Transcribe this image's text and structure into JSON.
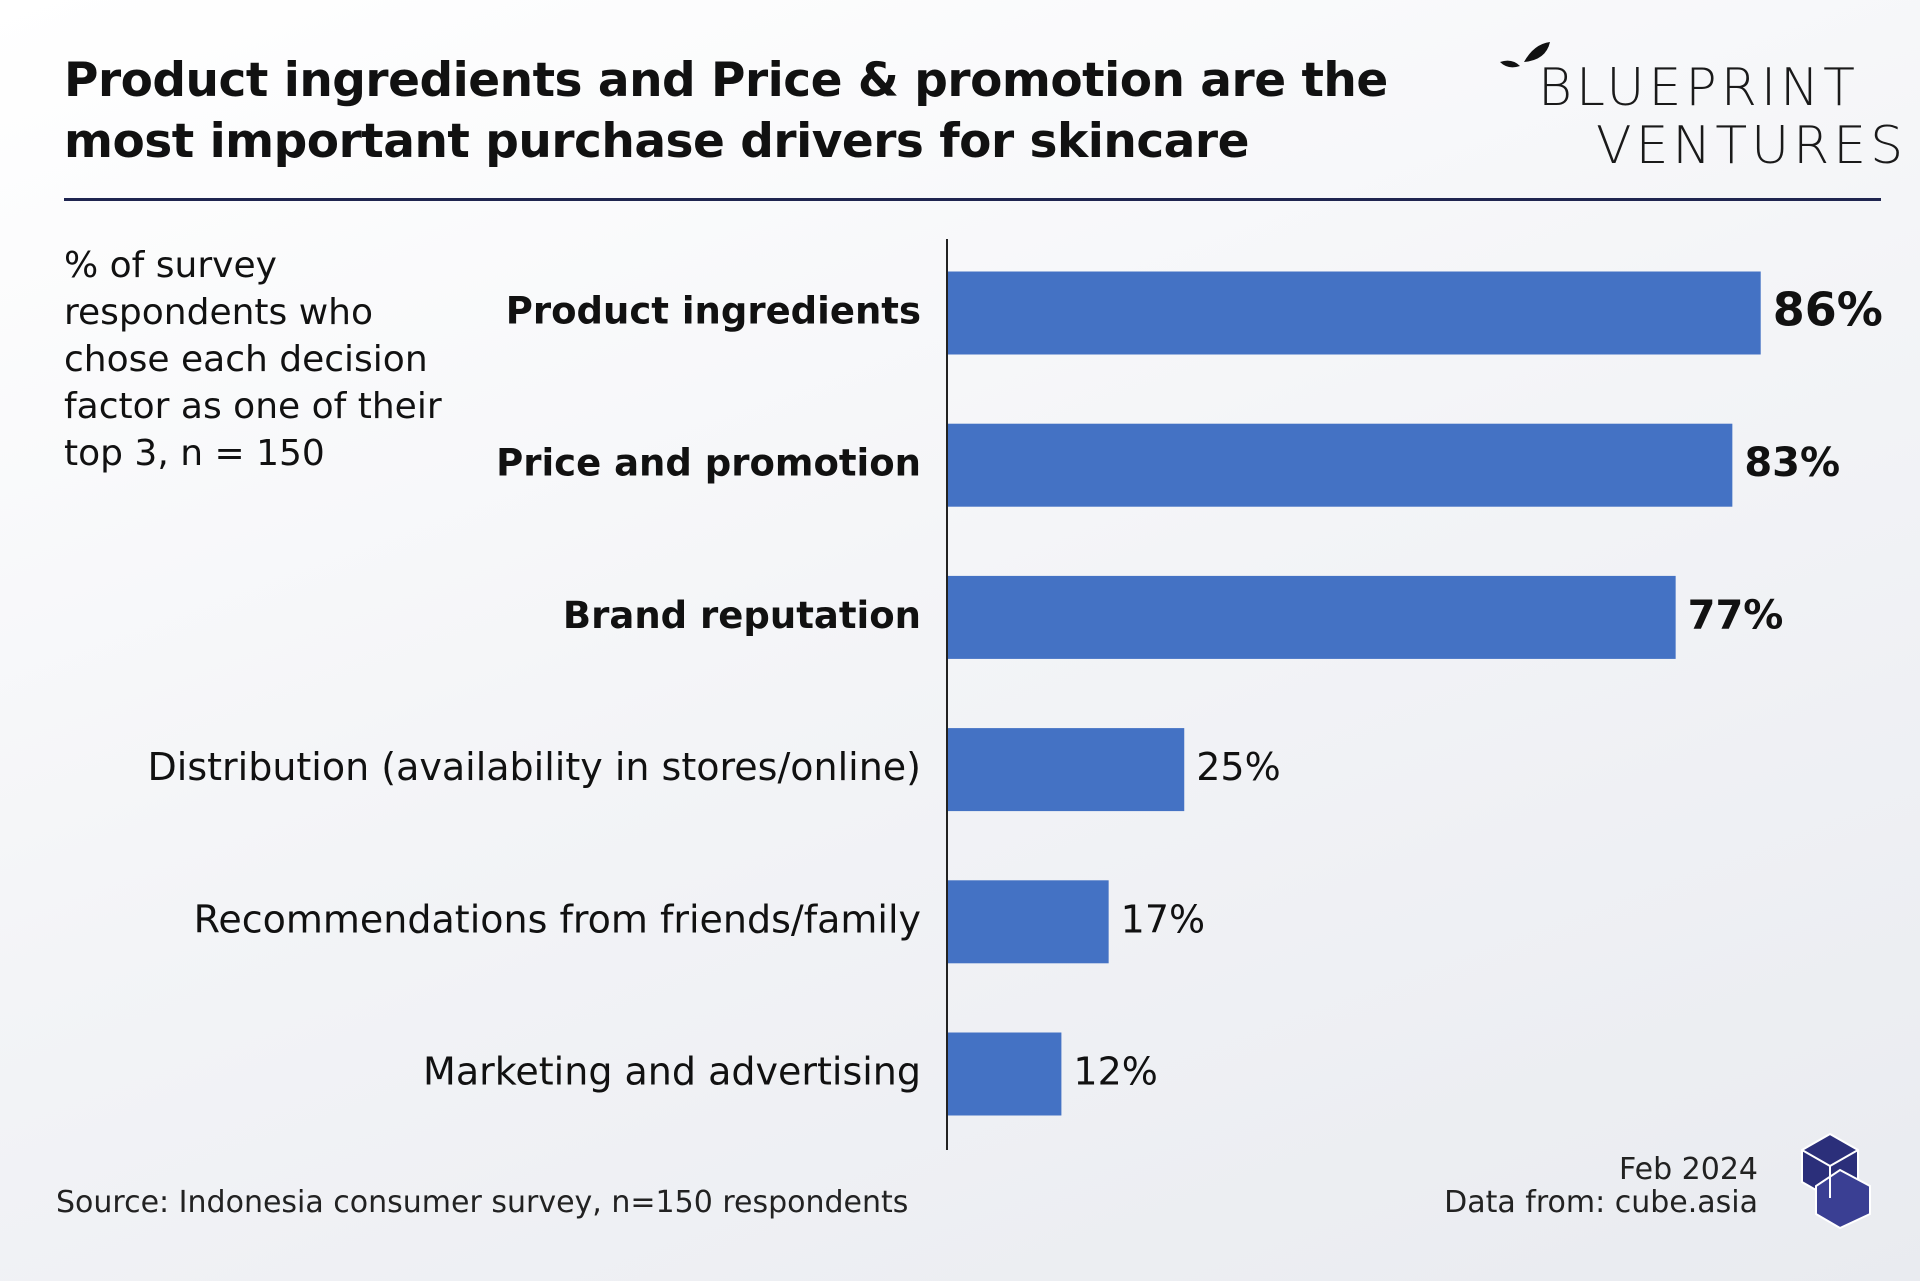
{
  "chart_data": {
    "type": "bar",
    "orientation": "horizontal",
    "title": "Product ingredients and Price & promotion are the most important purchase drivers for skincare",
    "subtitle": "% of survey respondents who chose each decision factor as one of their top 3, n = 150",
    "categories": [
      "Product ingredients",
      "Price and promotion",
      "Brand reputation",
      "Distribution (availability in stores/online)",
      "Recommendations from friends/family",
      "Marketing and advertising"
    ],
    "values": [
      86,
      83,
      77,
      25,
      17,
      12
    ],
    "value_labels": [
      "86%",
      "83%",
      "77%",
      "25%",
      "17%",
      "12%"
    ],
    "color": "#4472c4",
    "source": "Source: Indonesia consumer survey, n=150 respondents",
    "date": "Feb 2024",
    "data_from": "Data from: cube.asia"
  },
  "logo": {
    "line1": "BLUEPRINT",
    "line2": "VENTURES"
  }
}
